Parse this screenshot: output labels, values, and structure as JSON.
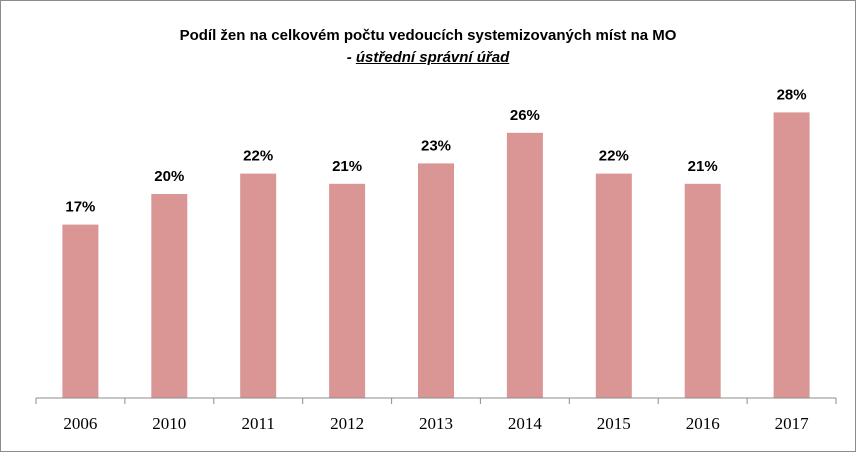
{
  "chart_data": {
    "type": "bar",
    "title": "Podíl žen na celkovém počtu vedoucích systemizovaných míst na MO",
    "subtitle_prefix": "- ",
    "subtitle_text": "ústřední správní úřad",
    "categories": [
      "2006",
      "2010",
      "2011",
      "2012",
      "2013",
      "2014",
      "2015",
      "2016",
      "2017"
    ],
    "values": [
      17,
      20,
      22,
      21,
      23,
      26,
      22,
      21,
      28
    ],
    "labels": [
      "17%",
      "20%",
      "22%",
      "21%",
      "23%",
      "26%",
      "22%",
      "21%",
      "28%"
    ],
    "ylim": [
      0,
      28
    ],
    "grid": false,
    "legend": "none",
    "bar_color": "#d99694",
    "axis_color": "#8c8c8c"
  }
}
